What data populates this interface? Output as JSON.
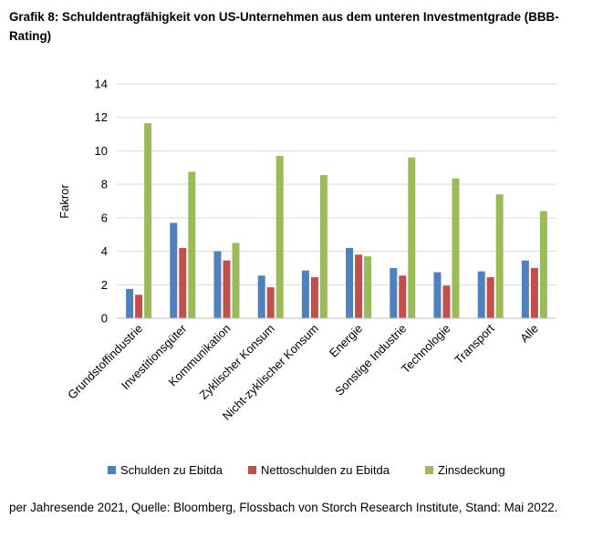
{
  "title": "Grafik 8: Schuldentragfähigkeit von US-Unternehmen aus dem unteren Investmentgrade (BBB-Rating)",
  "source": "per Jahresende 2021, Quelle: Bloomberg, Flossbach von Storch Research Institute, Stand: Mai 2022.",
  "chart_data": {
    "type": "bar",
    "title": "Grafik 8: Schuldentragfähigkeit von US-Unternehmen aus dem unteren Investmentgrade (BBB-Rating)",
    "xlabel": "",
    "ylabel": "Fakror",
    "ylim": [
      0,
      14
    ],
    "yticks": [
      0,
      2,
      4,
      6,
      8,
      10,
      12,
      14
    ],
    "grid": true,
    "legend_position": "bottom",
    "categories": [
      "Grundstoffindustrie",
      "Investitionsgüter",
      "Kommunikation",
      "Zyklischer Konsum",
      "Nicht-zyklischer Konsum",
      "Energie",
      "Sonstige Industrie",
      "Technologie",
      "Transport",
      "Alle"
    ],
    "series": [
      {
        "name": "Schulden zu Ebitda",
        "color": "#4F81BD",
        "values": [
          1.75,
          5.7,
          4.0,
          2.55,
          2.85,
          4.2,
          3.0,
          2.75,
          2.8,
          3.45
        ]
      },
      {
        "name": "Nettoschulden zu Ebitda",
        "color": "#C0504D",
        "values": [
          1.4,
          4.2,
          3.45,
          1.85,
          2.45,
          3.8,
          2.55,
          1.95,
          2.45,
          3.0
        ]
      },
      {
        "name": "Zinsdeckung",
        "color": "#9BBB59",
        "values": [
          11.65,
          8.75,
          4.5,
          9.7,
          8.55,
          3.7,
          9.6,
          8.35,
          7.4,
          6.4
        ]
      }
    ]
  }
}
